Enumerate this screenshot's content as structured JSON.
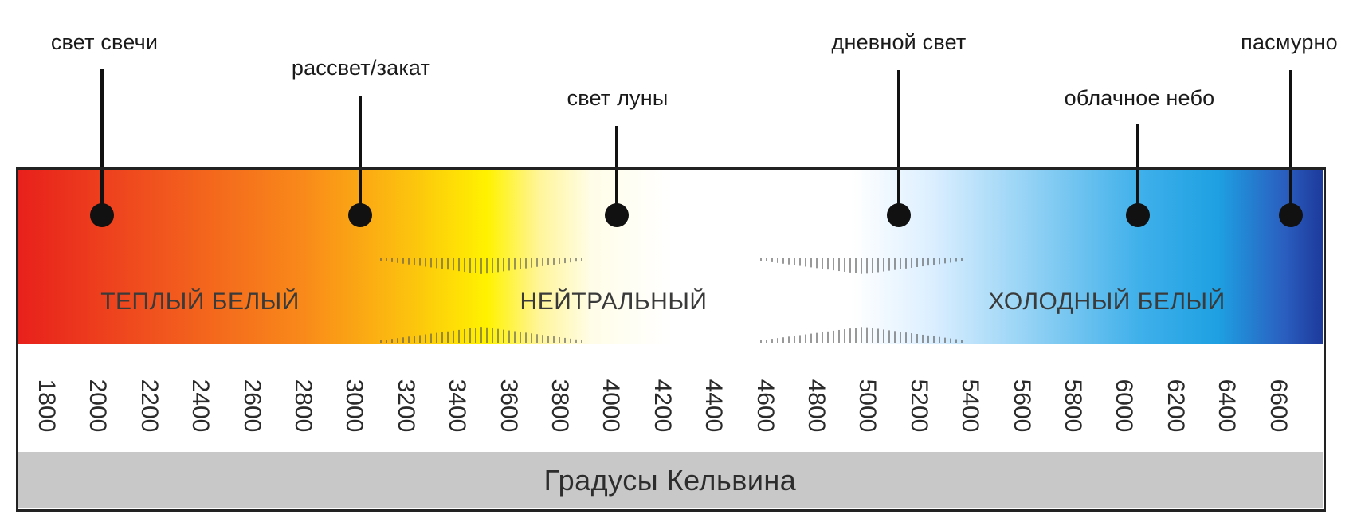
{
  "markers": [
    {
      "label": "свет свечи",
      "kelvin": 2000
    },
    {
      "label": "рассвет/закат",
      "kelvin": 3000
    },
    {
      "label": "свет луны",
      "kelvin": 4000
    },
    {
      "label": "дневной свет",
      "kelvin": 5100
    },
    {
      "label": "облачное небо",
      "kelvin": 6000
    },
    {
      "label": "пасмурно",
      "kelvin": 6600
    }
  ],
  "zones": {
    "warm": "ТЕПЛЫЙ БЕЛЫЙ",
    "neutral": "НЕЙТРАЛЬНЫЙ",
    "cool": "ХОЛОДНЫЙ БЕЛЫЙ"
  },
  "scale": {
    "ticks": [
      "1800",
      "2000",
      "2200",
      "2400",
      "2600",
      "2800",
      "3000",
      "3200",
      "3400",
      "3600",
      "3800",
      "4000",
      "4200",
      "4400",
      "4600",
      "4800",
      "5000",
      "5200",
      "5400",
      "5600",
      "5800",
      "6000",
      "6200",
      "6400",
      "6600"
    ]
  },
  "footer": {
    "title": "Градусы Кельвина"
  },
  "colors": {
    "warm_end": "#e8201c",
    "yellow": "#fff200",
    "neutral": "#ffffff",
    "sky_blue": "#1ea0e2",
    "cool_end": "#1d3a9c",
    "footer_bg": "#c8c8c8"
  }
}
